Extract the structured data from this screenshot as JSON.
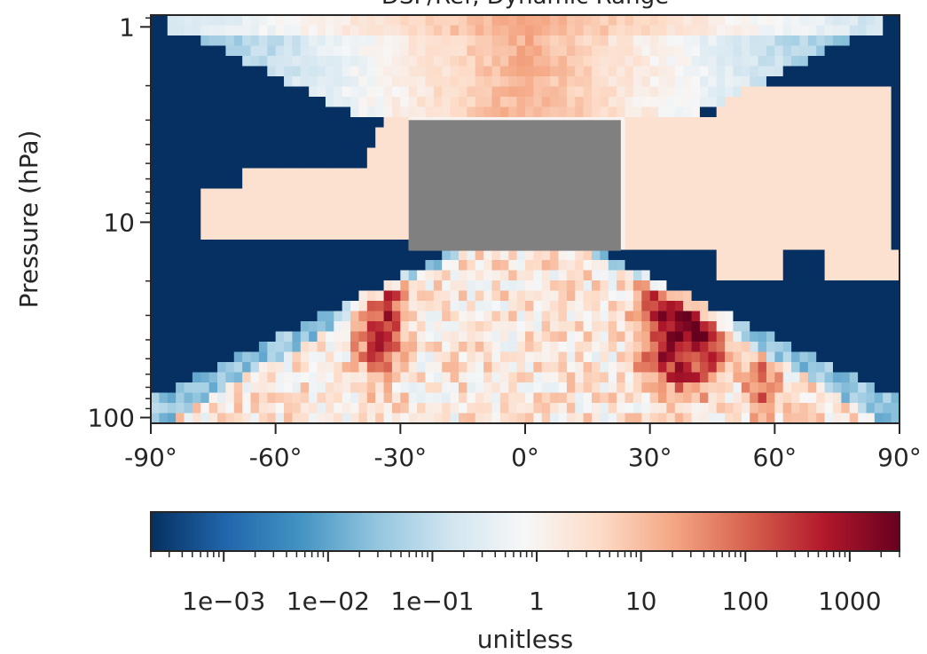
{
  "chart_data": {
    "type": "heatmap",
    "title": "DSF/Ref, Dynamic Range",
    "xlabel": "",
    "ylabel": "Pressure (hPa)",
    "x_range": [
      -90,
      90
    ],
    "x_ticks": [
      -90,
      -60,
      -30,
      0,
      30,
      60,
      90
    ],
    "x_tick_labels": [
      "-90°",
      "-60°",
      "-30°",
      "0°",
      "30°",
      "60°",
      "90°"
    ],
    "y_scale": "log",
    "y_range_hpa": [
      107,
      0.87
    ],
    "y_ticks": [
      1,
      10,
      100
    ],
    "y_tick_labels": [
      "1",
      "10",
      "100"
    ],
    "missing_value_color": "#808080",
    "missing_region": {
      "lat_range": [
        -28,
        23
      ],
      "pressure_range_hpa": [
        3.0,
        14.0
      ]
    },
    "colorbar": {
      "label": "unitless",
      "scale": "log",
      "range": [
        0.0002,
        3000
      ],
      "tick_values": [
        0.001,
        0.01,
        0.1,
        1,
        10,
        100,
        1000
      ],
      "tick_labels": [
        "1e−03",
        "1e−02",
        "1e−01",
        "1",
        "10",
        "100",
        "1000"
      ],
      "colormap": "RdBu_r",
      "colors": [
        "#053061",
        "#2166ac",
        "#4393c3",
        "#92c5de",
        "#d1e5f0",
        "#f7f7f7",
        "#fddbc7",
        "#f4a582",
        "#d6604d",
        "#b2182b",
        "#67001f"
      ]
    },
    "features": [
      {
        "description": "low value background (dark blue)",
        "value": 0.0002
      },
      {
        "description": "peak near 38N, 40 hPa",
        "value": 2000
      },
      {
        "description": "peak near 35S, 35 hPa",
        "value": 300
      },
      {
        "description": "stratopause band near equator, 1 hPa",
        "value": 20
      },
      {
        "description": "upper stratosphere plateau",
        "value": 3
      }
    ]
  }
}
